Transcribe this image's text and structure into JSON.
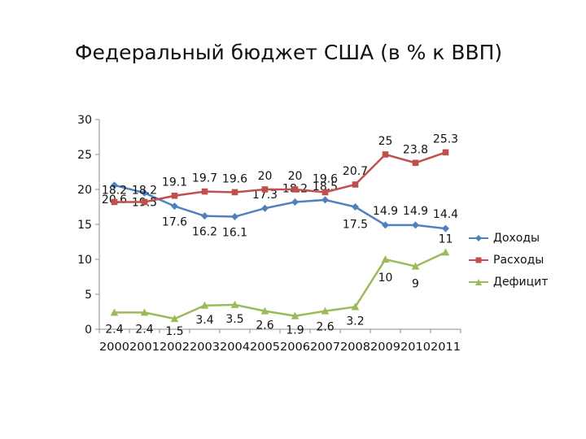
{
  "chart_data": {
    "type": "line",
    "title": "Федеральный бюджет США (в % к ВВП)",
    "categories": [
      "2000",
      "2001",
      "2002",
      "2003",
      "2004",
      "2005",
      "2006",
      "2007",
      "2008",
      "2009",
      "2010",
      "2011"
    ],
    "ylim": [
      0,
      30
    ],
    "yticks": [
      0,
      5,
      10,
      15,
      20,
      25,
      30
    ],
    "grid": false,
    "legend_position": "right",
    "series": [
      {
        "name": "Доходы",
        "color": "#4F81BD",
        "marker": "diamond",
        "values": [
          20.6,
          19.5,
          17.6,
          16.2,
          16.1,
          17.3,
          18.2,
          18.5,
          17.5,
          14.9,
          14.9,
          14.4
        ],
        "labels": [
          "20.6",
          "19.5",
          "17.6",
          "16.2",
          "16.1",
          "17.3",
          "18.2",
          "18.5",
          "17.5",
          "14.9",
          "14.9",
          "14.4"
        ]
      },
      {
        "name": "Расходы",
        "color": "#C0504D",
        "marker": "square",
        "values": [
          18.2,
          18.2,
          19.1,
          19.7,
          19.6,
          20,
          20,
          19.6,
          20.7,
          25,
          23.8,
          25.3
        ],
        "labels": [
          "18.2",
          "18.2",
          "19.1",
          "19.7",
          "19.6",
          "20",
          "20",
          "19.6",
          "20.7",
          "25",
          "23.8",
          "25.3"
        ]
      },
      {
        "name": "Дефицит",
        "color": "#9BBB59",
        "marker": "triangle",
        "values": [
          2.4,
          2.4,
          1.5,
          3.4,
          3.5,
          2.6,
          1.9,
          2.6,
          3.2,
          10,
          9,
          11
        ],
        "labels": [
          "2.4",
          "2.4",
          "1.5",
          "3.4",
          "3.5",
          "2.6",
          "1.9",
          "2.6",
          "3.2",
          "10",
          "9",
          "11"
        ]
      }
    ]
  }
}
